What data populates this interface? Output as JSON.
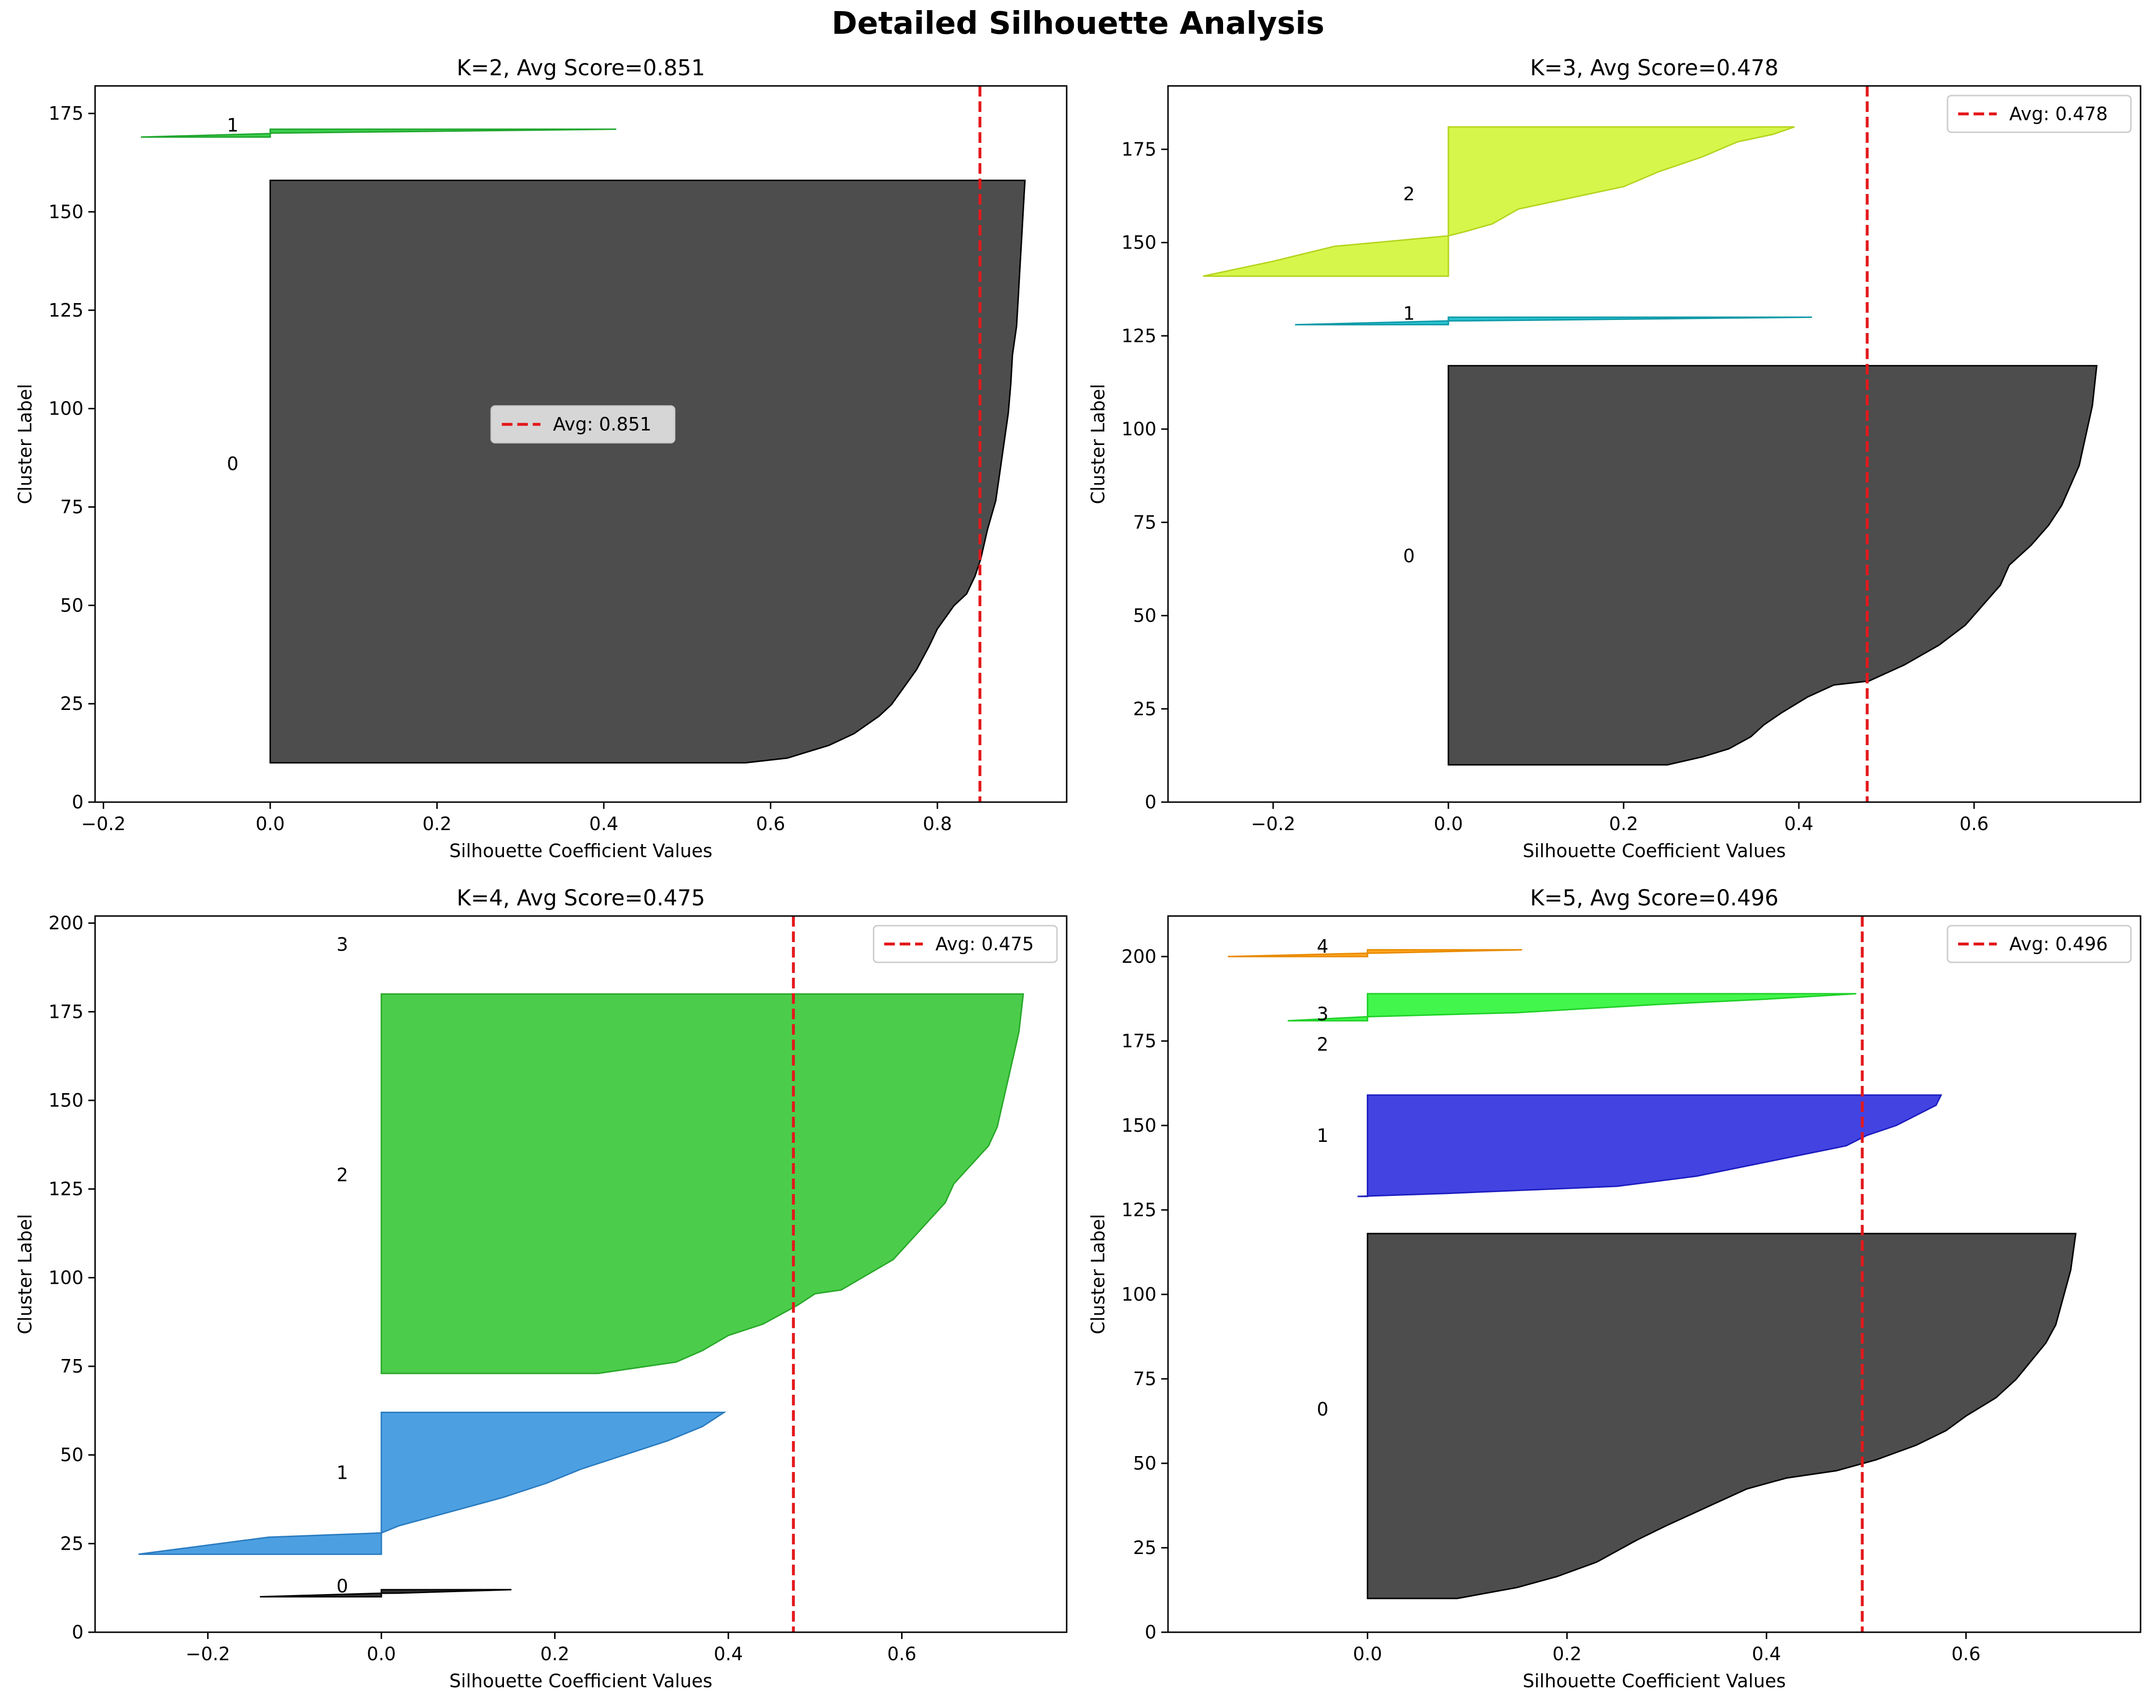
{
  "figure": {
    "title": "Detailed Silhouette Analysis"
  },
  "chart_data": [
    {
      "type": "area",
      "title": "K=2, Avg Score=0.851",
      "xlabel": "Silhouette Coefficient Values",
      "ylabel": "Cluster Label",
      "xlim": [
        -0.21,
        0.955
      ],
      "ylim": [
        0,
        182
      ],
      "xticks": [
        -0.2,
        0.0,
        0.2,
        0.4,
        0.6,
        0.8
      ],
      "yticks": [
        0,
        25,
        50,
        75,
        100,
        125,
        150,
        175
      ],
      "avg_line": 0.851,
      "legend": {
        "label": "Avg: 0.851",
        "placement": "center"
      },
      "clusters": [
        {
          "label": "0",
          "color": "#4d4d4d",
          "edge": "#000000",
          "y_start": 10,
          "label_y": 86,
          "profile": [
            [
              0,
              0.57
            ],
            [
              0.008,
              0.62
            ],
            [
              0.03,
              0.67
            ],
            [
              0.05,
              0.7
            ],
            [
              0.08,
              0.73
            ],
            [
              0.1,
              0.745
            ],
            [
              0.13,
              0.76
            ],
            [
              0.16,
              0.775
            ],
            [
              0.2,
              0.79
            ],
            [
              0.23,
              0.8
            ],
            [
              0.25,
              0.81
            ],
            [
              0.27,
              0.82
            ],
            [
              0.29,
              0.835
            ],
            [
              0.32,
              0.845
            ],
            [
              0.35,
              0.852
            ],
            [
              0.4,
              0.86
            ],
            [
              0.45,
              0.87
            ],
            [
              0.5,
              0.875
            ],
            [
              0.55,
              0.88
            ],
            [
              0.6,
              0.885
            ],
            [
              0.65,
              0.888
            ],
            [
              0.7,
              0.89
            ],
            [
              0.75,
              0.895
            ],
            [
              0.8,
              0.897
            ],
            [
              0.85,
              0.899
            ],
            [
              0.9,
              0.901
            ],
            [
              0.95,
              0.903
            ],
            [
              1,
              0.905
            ]
          ],
          "n": 148
        },
        {
          "label": "1",
          "color": "#2ecc40",
          "edge": "#21a62e",
          "y_start": 169,
          "label_y": 172,
          "profile": [
            [
              0,
              -0.155
            ],
            [
              0.45,
              0.0
            ],
            [
              0.5,
              0.002
            ],
            [
              1,
              0.415
            ]
          ],
          "n": 2
        }
      ]
    },
    {
      "type": "area",
      "title": "K=3, Avg Score=0.478",
      "xlabel": "Silhouette Coefficient Values",
      "ylabel": "Cluster Label",
      "xlim": [
        -0.32,
        0.79
      ],
      "ylim": [
        0,
        192
      ],
      "xticks": [
        -0.2,
        0.0,
        0.2,
        0.4,
        0.6
      ],
      "yticks": [
        0,
        25,
        50,
        75,
        100,
        125,
        150,
        175
      ],
      "avg_line": 0.478,
      "legend": {
        "label": "Avg: 0.478",
        "placement": "top-right"
      },
      "clusters": [
        {
          "label": "0",
          "color": "#4d4d4d",
          "edge": "#000000",
          "y_start": 10,
          "label_y": 66,
          "profile": [
            [
              0,
              0.25
            ],
            [
              0.02,
              0.29
            ],
            [
              0.04,
              0.32
            ],
            [
              0.07,
              0.345
            ],
            [
              0.1,
              0.36
            ],
            [
              0.13,
              0.38
            ],
            [
              0.17,
              0.41
            ],
            [
              0.2,
              0.44
            ],
            [
              0.21,
              0.48
            ],
            [
              0.25,
              0.52
            ],
            [
              0.3,
              0.56
            ],
            [
              0.35,
              0.59
            ],
            [
              0.4,
              0.61
            ],
            [
              0.45,
              0.63
            ],
            [
              0.5,
              0.64
            ],
            [
              0.55,
              0.665
            ],
            [
              0.6,
              0.685
            ],
            [
              0.65,
              0.7
            ],
            [
              0.7,
              0.71
            ],
            [
              0.75,
              0.72
            ],
            [
              0.8,
              0.725
            ],
            [
              0.85,
              0.73
            ],
            [
              0.9,
              0.735
            ],
            [
              1,
              0.74
            ]
          ],
          "n": 107
        },
        {
          "label": "1",
          "color": "#17becf",
          "edge": "#119aa8",
          "y_start": 128,
          "label_y": 131,
          "profile": [
            [
              0,
              -0.175
            ],
            [
              0.5,
              0.0
            ],
            [
              0.51,
              0.02
            ],
            [
              1,
              0.415
            ]
          ],
          "n": 2
        },
        {
          "label": "2",
          "color": "#d4f53c",
          "edge": "#b5d41f",
          "y_start": 141,
          "label_y": 163,
          "profile": [
            [
              0,
              -0.28
            ],
            [
              0.1,
              -0.2
            ],
            [
              0.2,
              -0.13
            ],
            [
              0.27,
              0.0
            ],
            [
              0.3,
              0.02
            ],
            [
              0.35,
              0.05
            ],
            [
              0.45,
              0.08
            ],
            [
              0.5,
              0.12
            ],
            [
              0.55,
              0.16
            ],
            [
              0.6,
              0.2
            ],
            [
              0.7,
              0.24
            ],
            [
              0.8,
              0.29
            ],
            [
              0.9,
              0.33
            ],
            [
              0.95,
              0.37
            ],
            [
              1,
              0.395
            ]
          ],
          "n": 40
        }
      ]
    },
    {
      "type": "area",
      "title": "K=4, Avg Score=0.475",
      "xlabel": "Silhouette Coefficient Values",
      "ylabel": "Cluster Label",
      "xlim": [
        -0.33,
        0.79
      ],
      "ylim": [
        0,
        202
      ],
      "xticks": [
        -0.2,
        0.0,
        0.2,
        0.4,
        0.6
      ],
      "yticks": [
        0,
        25,
        50,
        75,
        100,
        125,
        150,
        175,
        200
      ],
      "avg_line": 0.475,
      "legend": {
        "label": "Avg: 0.475",
        "placement": "top-right"
      },
      "clusters": [
        {
          "label": "0",
          "color": "#333333",
          "edge": "#000000",
          "y_start": 10,
          "label_y": 13,
          "profile": [
            [
              0,
              -0.14
            ],
            [
              0.5,
              0.0
            ],
            [
              0.51,
              0.02
            ],
            [
              1,
              0.15
            ]
          ],
          "n": 2
        },
        {
          "label": "1",
          "color": "#3d98e0",
          "edge": "#2b7cc0",
          "y_start": 22,
          "label_y": 45,
          "profile": [
            [
              0,
              -0.28
            ],
            [
              0.12,
              -0.13
            ],
            [
              0.15,
              0.0
            ],
            [
              0.2,
              0.02
            ],
            [
              0.3,
              0.08
            ],
            [
              0.4,
              0.14
            ],
            [
              0.5,
              0.19
            ],
            [
              0.6,
              0.23
            ],
            [
              0.7,
              0.28
            ],
            [
              0.8,
              0.33
            ],
            [
              0.9,
              0.37
            ],
            [
              1,
              0.395
            ]
          ],
          "n": 40
        },
        {
          "label": "2",
          "color": "#3cc93c",
          "edge": "#2aa82a",
          "y_start": 73,
          "label_y": 129,
          "profile": [
            [
              0,
              0.25
            ],
            [
              0.03,
              0.34
            ],
            [
              0.06,
              0.37
            ],
            [
              0.1,
              0.4
            ],
            [
              0.13,
              0.44
            ],
            [
              0.18,
              0.48
            ],
            [
              0.21,
              0.5
            ],
            [
              0.22,
              0.53
            ],
            [
              0.26,
              0.56
            ],
            [
              0.3,
              0.59
            ],
            [
              0.35,
              0.61
            ],
            [
              0.4,
              0.63
            ],
            [
              0.45,
              0.65
            ],
            [
              0.5,
              0.66
            ],
            [
              0.55,
              0.68
            ],
            [
              0.6,
              0.7
            ],
            [
              0.65,
              0.71
            ],
            [
              0.7,
              0.715
            ],
            [
              0.75,
              0.72
            ],
            [
              0.8,
              0.725
            ],
            [
              0.85,
              0.73
            ],
            [
              0.9,
              0.735
            ],
            [
              1,
              0.74
            ]
          ],
          "n": 107
        },
        {
          "label": "3",
          "color": "#ff7f0e",
          "edge": "#ff7f0e",
          "y_start": 190,
          "label_y": 194,
          "profile": [],
          "n": 0
        }
      ]
    },
    {
      "type": "area",
      "title": "K=5, Avg Score=0.496",
      "xlabel": "Silhouette Coefficient Values",
      "ylabel": "Cluster Label",
      "xlim": [
        -0.2,
        0.775
      ],
      "ylim": [
        0,
        212
      ],
      "xticks": [
        0.0,
        0.2,
        0.4,
        0.6
      ],
      "yticks": [
        0,
        25,
        50,
        75,
        100,
        125,
        150,
        175,
        200
      ],
      "avg_line": 0.496,
      "legend": {
        "label": "Avg: 0.496",
        "placement": "top-right"
      },
      "clusters": [
        {
          "label": "0",
          "color": "#4d4d4d",
          "edge": "#000000",
          "y_start": 10,
          "label_y": 66,
          "profile": [
            [
              0,
              0.09
            ],
            [
              0.03,
              0.15
            ],
            [
              0.06,
              0.19
            ],
            [
              0.1,
              0.23
            ],
            [
              0.13,
              0.25
            ],
            [
              0.16,
              0.27
            ],
            [
              0.2,
              0.3
            ],
            [
              0.25,
              0.34
            ],
            [
              0.3,
              0.38
            ],
            [
              0.33,
              0.42
            ],
            [
              0.35,
              0.47
            ],
            [
              0.38,
              0.51
            ],
            [
              0.42,
              0.55
            ],
            [
              0.46,
              0.58
            ],
            [
              0.5,
              0.6
            ],
            [
              0.55,
              0.63
            ],
            [
              0.6,
              0.65
            ],
            [
              0.65,
              0.665
            ],
            [
              0.7,
              0.68
            ],
            [
              0.75,
              0.69
            ],
            [
              0.8,
              0.695
            ],
            [
              0.85,
              0.7
            ],
            [
              0.9,
              0.705
            ],
            [
              1,
              0.71
            ]
          ],
          "n": 108
        },
        {
          "label": "1",
          "color": "#3333e0",
          "edge": "#1d1dc0",
          "y_start": 129,
          "label_y": 147,
          "profile": [
            [
              0,
              -0.01
            ],
            [
              0.03,
              0.08
            ],
            [
              0.1,
              0.25
            ],
            [
              0.2,
              0.33
            ],
            [
              0.3,
              0.38
            ],
            [
              0.4,
              0.43
            ],
            [
              0.5,
              0.48
            ],
            [
              0.6,
              0.5
            ],
            [
              0.7,
              0.53
            ],
            [
              0.8,
              0.55
            ],
            [
              0.9,
              0.57
            ],
            [
              1,
              0.575
            ]
          ],
          "n": 30
        },
        {
          "label": "2",
          "color": "#9467bd",
          "edge": "#9467bd",
          "y_start": 170,
          "label_y": 174,
          "profile": [],
          "n": 0
        },
        {
          "label": "3",
          "color": "#33f53c",
          "edge": "#20d029",
          "y_start": 181,
          "label_y": 183,
          "profile": [
            [
              0,
              -0.08
            ],
            [
              0.15,
              0.0
            ],
            [
              0.3,
              0.15
            ],
            [
              0.6,
              0.29
            ],
            [
              0.8,
              0.4
            ],
            [
              1,
              0.49
            ]
          ],
          "n": 8
        },
        {
          "label": "4",
          "color": "#ff9f0e",
          "edge": "#e88a00",
          "y_start": 200,
          "label_y": 203,
          "profile": [
            [
              0,
              -0.14
            ],
            [
              0.5,
              0.0
            ],
            [
              0.51,
              0.01
            ],
            [
              1,
              0.155
            ]
          ],
          "n": 2
        }
      ]
    }
  ]
}
